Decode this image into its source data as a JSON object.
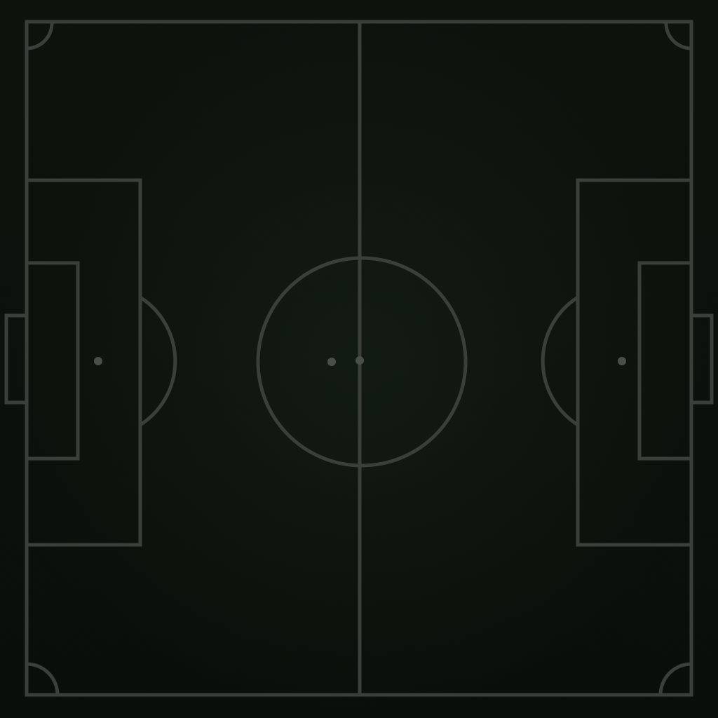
{
  "pitch": {
    "line_color": "#3a3f3a",
    "spot_color": "#4a4f4a",
    "surface_color": "#0d120d"
  }
}
